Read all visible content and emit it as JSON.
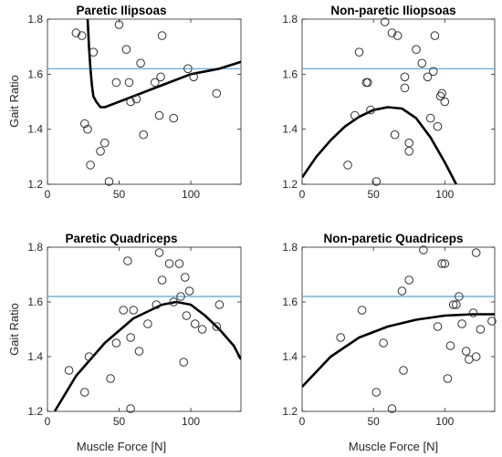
{
  "chart_data": [
    {
      "type": "scatter",
      "title": "Paretic Ilipsoas",
      "xlabel": "",
      "ylabel": "Gait Ratio",
      "xlim": [
        0,
        135
      ],
      "ylim": [
        1.2,
        1.8
      ],
      "xticks": [
        "0",
        "50",
        "100"
      ],
      "yticks": [
        "1.2",
        "1.4",
        "1.6",
        "1.8"
      ],
      "reference_line": 1.62,
      "points": [
        [
          20,
          1.75
        ],
        [
          24,
          1.74
        ],
        [
          26,
          1.42
        ],
        [
          28,
          1.4
        ],
        [
          30,
          1.27
        ],
        [
          32,
          1.68
        ],
        [
          37,
          1.32
        ],
        [
          40,
          1.35
        ],
        [
          43,
          1.21
        ],
        [
          48,
          1.57
        ],
        [
          50,
          1.78
        ],
        [
          55,
          1.69
        ],
        [
          57,
          1.57
        ],
        [
          58,
          1.5
        ],
        [
          62,
          1.51
        ],
        [
          65,
          1.64
        ],
        [
          67,
          1.38
        ],
        [
          75,
          1.57
        ],
        [
          78,
          1.45
        ],
        [
          79,
          1.59
        ],
        [
          80,
          1.74
        ],
        [
          88,
          1.44
        ],
        [
          98,
          1.62
        ],
        [
          102,
          1.59
        ],
        [
          118,
          1.53
        ]
      ],
      "curve": [
        [
          28,
          1.8
        ],
        [
          29,
          1.7
        ],
        [
          30,
          1.62
        ],
        [
          31,
          1.56
        ],
        [
          32,
          1.52
        ],
        [
          34,
          1.5
        ],
        [
          37,
          1.48
        ],
        [
          40,
          1.48
        ],
        [
          60,
          1.52
        ],
        [
          80,
          1.56
        ],
        [
          100,
          1.6
        ],
        [
          120,
          1.62
        ],
        [
          135,
          1.645
        ]
      ]
    },
    {
      "type": "scatter",
      "title": "Non-paretic Iliopsoas",
      "xlabel": "",
      "ylabel": "",
      "xlim": [
        0,
        135
      ],
      "ylim": [
        1.2,
        1.8
      ],
      "xticks": [
        "0",
        "50",
        "100"
      ],
      "yticks": [
        "1.2",
        "1.4",
        "1.6",
        "1.8"
      ],
      "reference_line": 1.62,
      "points": [
        [
          32,
          1.27
        ],
        [
          37,
          1.45
        ],
        [
          40,
          1.68
        ],
        [
          45,
          1.57
        ],
        [
          46,
          1.57
        ],
        [
          48,
          1.47
        ],
        [
          52,
          1.21
        ],
        [
          58,
          1.79
        ],
        [
          63,
          1.75
        ],
        [
          67,
          1.74
        ],
        [
          65,
          1.38
        ],
        [
          72,
          1.55
        ],
        [
          72,
          1.59
        ],
        [
          75,
          1.32
        ],
        [
          75,
          1.35
        ],
        [
          80,
          1.69
        ],
        [
          84,
          1.64
        ],
        [
          88,
          1.59
        ],
        [
          90,
          1.44
        ],
        [
          92,
          1.61
        ],
        [
          93,
          1.74
        ],
        [
          95,
          1.41
        ],
        [
          97,
          1.52
        ],
        [
          98,
          1.53
        ],
        [
          100,
          1.5
        ]
      ],
      "curve": [
        [
          0,
          1.225
        ],
        [
          10,
          1.3
        ],
        [
          20,
          1.36
        ],
        [
          30,
          1.41
        ],
        [
          40,
          1.445
        ],
        [
          50,
          1.47
        ],
        [
          60,
          1.48
        ],
        [
          70,
          1.475
        ],
        [
          80,
          1.44
        ],
        [
          90,
          1.37
        ],
        [
          100,
          1.28
        ],
        [
          108,
          1.2
        ]
      ]
    },
    {
      "type": "scatter",
      "title": "Paretic Quadriceps",
      "xlabel": "Muscle Force [N]",
      "ylabel": "Gait Ratio",
      "xlim": [
        0,
        135
      ],
      "ylim": [
        1.2,
        1.8
      ],
      "xticks": [
        "0",
        "50",
        "100"
      ],
      "yticks": [
        "1.2",
        "1.4",
        "1.6",
        "1.8"
      ],
      "reference_line": 1.62,
      "points": [
        [
          15,
          1.35
        ],
        [
          26,
          1.27
        ],
        [
          29,
          1.4
        ],
        [
          44,
          1.32
        ],
        [
          48,
          1.45
        ],
        [
          53,
          1.57
        ],
        [
          56,
          1.75
        ],
        [
          58,
          1.47
        ],
        [
          58,
          1.21
        ],
        [
          60,
          1.57
        ],
        [
          64,
          1.42
        ],
        [
          70,
          1.52
        ],
        [
          76,
          1.59
        ],
        [
          78,
          1.78
        ],
        [
          80,
          1.68
        ],
        [
          85,
          1.74
        ],
        [
          88,
          1.6
        ],
        [
          92,
          1.74
        ],
        [
          93,
          1.62
        ],
        [
          96,
          1.69
        ],
        [
          95,
          1.38
        ],
        [
          97,
          1.55
        ],
        [
          99,
          1.64
        ],
        [
          103,
          1.52
        ],
        [
          108,
          1.5
        ],
        [
          118,
          1.51
        ],
        [
          120,
          1.59
        ]
      ],
      "curve": [
        [
          5,
          1.2
        ],
        [
          20,
          1.33
        ],
        [
          40,
          1.45
        ],
        [
          60,
          1.54
        ],
        [
          80,
          1.59
        ],
        [
          90,
          1.6
        ],
        [
          100,
          1.59
        ],
        [
          110,
          1.55
        ],
        [
          120,
          1.5
        ],
        [
          130,
          1.44
        ],
        [
          135,
          1.39
        ]
      ]
    },
    {
      "type": "scatter",
      "title": "Non-paretic Quadriceps",
      "xlabel": "Muscle Force [N]",
      "ylabel": "",
      "xlim": [
        0,
        135
      ],
      "ylim": [
        1.2,
        1.8
      ],
      "xticks": [
        "0",
        "50",
        "100"
      ],
      "yticks": [
        "1.2",
        "1.4",
        "1.6",
        "1.8"
      ],
      "reference_line": 1.62,
      "points": [
        [
          27,
          1.47
        ],
        [
          42,
          1.57
        ],
        [
          52,
          1.27
        ],
        [
          57,
          1.45
        ],
        [
          63,
          1.21
        ],
        [
          70,
          1.64
        ],
        [
          71,
          1.35
        ],
        [
          75,
          1.68
        ],
        [
          85,
          1.79
        ],
        [
          95,
          1.51
        ],
        [
          98,
          1.74
        ],
        [
          100,
          1.74
        ],
        [
          102,
          1.32
        ],
        [
          104,
          1.44
        ],
        [
          106,
          1.59
        ],
        [
          108,
          1.59
        ],
        [
          110,
          1.62
        ],
        [
          112,
          1.52
        ],
        [
          115,
          1.42
        ],
        [
          117,
          1.39
        ],
        [
          120,
          1.56
        ],
        [
          122,
          1.78
        ],
        [
          122,
          1.4
        ],
        [
          125,
          1.5
        ],
        [
          133,
          1.53
        ]
      ],
      "curve": [
        [
          0,
          1.29
        ],
        [
          20,
          1.4
        ],
        [
          40,
          1.47
        ],
        [
          60,
          1.51
        ],
        [
          80,
          1.535
        ],
        [
          100,
          1.55
        ],
        [
          120,
          1.555
        ],
        [
          135,
          1.555
        ]
      ]
    }
  ]
}
